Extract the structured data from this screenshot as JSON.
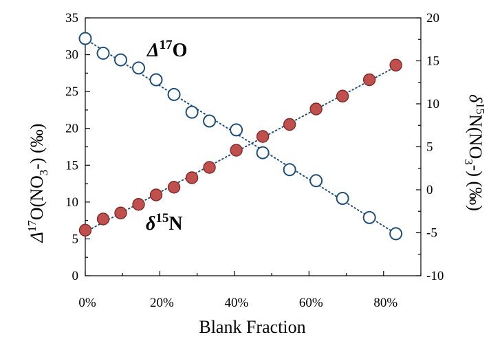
{
  "chart_data": {
    "type": "scatter",
    "xlabel": "Blank Fraction",
    "x_ticks": [
      "0%",
      "20%",
      "40%",
      "60%",
      "80%"
    ],
    "xlim": [
      0,
      0.9
    ],
    "left_axis": {
      "ylim": [
        0,
        35
      ],
      "ticks": [
        0,
        5,
        10,
        15,
        20,
        25,
        30,
        35
      ],
      "label": {
        "delta": "Δ",
        "sup": "17",
        "main": "O(NO",
        "sub": "3",
        "end": "-) (‰)"
      }
    },
    "right_axis": {
      "ylim": [
        -10,
        20
      ],
      "ticks": [
        -10,
        -5,
        0,
        5,
        10,
        15,
        20
      ],
      "label": {
        "delta": "δ",
        "sup": "15",
        "main": "N(NO",
        "sub": "3",
        "end": "-) (‰)"
      }
    },
    "series": [
      {
        "name": "Δ17O",
        "label_parts": {
          "symbol": "Δ",
          "sup": "17",
          "element": "O"
        },
        "axis": "left",
        "marker_fill": "#ffffff",
        "marker_stroke": "#1f4e79",
        "x": [
          0.0,
          0.048,
          0.095,
          0.143,
          0.19,
          0.238,
          0.286,
          0.333,
          0.405,
          0.476,
          0.548,
          0.619,
          0.69,
          0.762,
          0.833
        ],
        "y": [
          32.2,
          30.2,
          29.3,
          28.2,
          26.6,
          24.6,
          22.2,
          21.0,
          19.8,
          16.7,
          14.4,
          12.9,
          10.5,
          7.9,
          5.7
        ]
      },
      {
        "name": "δ15N",
        "label_parts": {
          "symbol": "δ",
          "sup": "15",
          "element": "N"
        },
        "axis": "right",
        "marker_fill": "#c0504d",
        "marker_stroke": "#7f2a27",
        "x": [
          0.0,
          0.048,
          0.095,
          0.143,
          0.19,
          0.238,
          0.286,
          0.333,
          0.405,
          0.476,
          0.548,
          0.619,
          0.69,
          0.762,
          0.833
        ],
        "y": [
          -4.7,
          -3.4,
          -2.7,
          -1.7,
          -0.6,
          0.3,
          1.4,
          2.6,
          4.6,
          6.2,
          7.6,
          9.4,
          10.9,
          12.8,
          14.5
        ]
      }
    ],
    "trend_color": "#1f4e79"
  }
}
